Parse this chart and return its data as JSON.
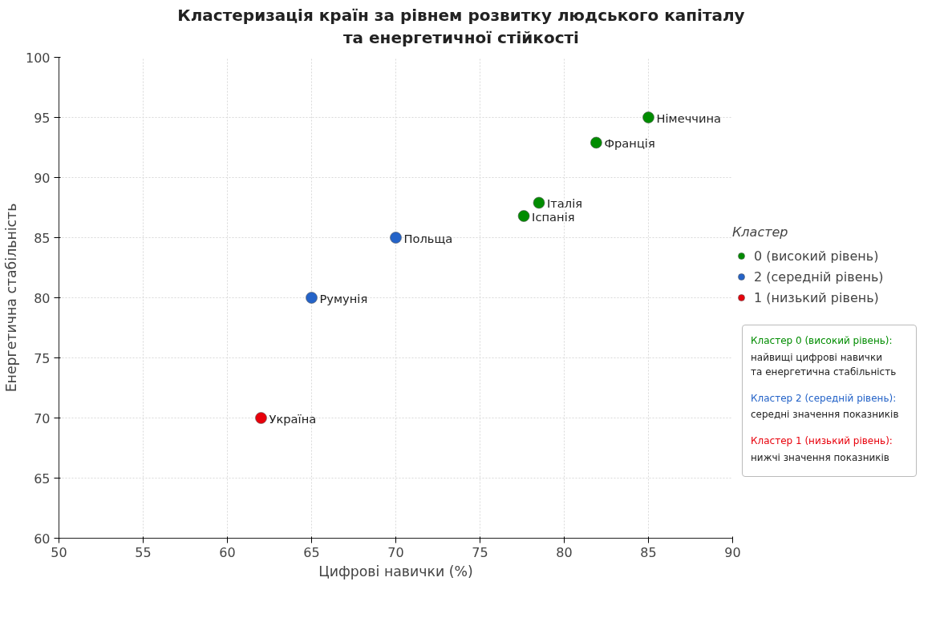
{
  "chart_data": {
    "type": "scatter",
    "title": "Кластеризація країн за рівнем розвитку людського капіталу\nта енергетичної стійкості",
    "xlabel": "Цифрові навички (%)",
    "ylabel": "Енергетична стабільність",
    "legend_title": "Кластер",
    "series": [
      {
        "name": "0 (високий рівень)",
        "color": "#008c00",
        "x": [
          85.0,
          81.9,
          78.5,
          77.6
        ],
        "values": [
          95.0,
          92.9,
          87.9,
          86.8
        ]
      },
      {
        "name": "2 (середній рівень)",
        "color": "#2463c8",
        "x": [
          70.0,
          65.0
        ],
        "values": [
          85.0,
          80.0
        ]
      },
      {
        "name": "1 (низький рівень)",
        "color": "#e8000b",
        "x": [
          62.0
        ],
        "values": [
          70.0
        ]
      }
    ],
    "annotations": [
      {
        "text": "Німеччина",
        "x": 85.0,
        "y": 95.0
      },
      {
        "text": "Франція",
        "x": 81.9,
        "y": 92.9
      },
      {
        "text": "Італія",
        "x": 78.5,
        "y": 87.9
      },
      {
        "text": "Іспанія",
        "x": 77.6,
        "y": 86.8
      },
      {
        "text": "Польща",
        "x": 70.0,
        "y": 85.0
      },
      {
        "text": "Румунія",
        "x": 65.0,
        "y": 80.0
      },
      {
        "text": "Україна",
        "x": 62.0,
        "y": 70.0
      },
      "Кластер 0 (високий рівень):",
      "найвищі цифрові навички\nта енергетична стабільність",
      "Кластер 2 (середній рівень):",
      "середні значення показників",
      "Кластер 1 (низький рівень):",
      "нижчі значення показників"
    ],
    "xlim": [
      50,
      90
    ],
    "ylim": [
      60,
      100
    ],
    "xticks": [
      50,
      55,
      60,
      65,
      70,
      75,
      80,
      85,
      90
    ],
    "yticks": [
      60,
      65,
      70,
      75,
      80,
      85,
      90,
      95,
      100
    ],
    "grid": true,
    "legend": "right",
    "marker": "circle"
  }
}
